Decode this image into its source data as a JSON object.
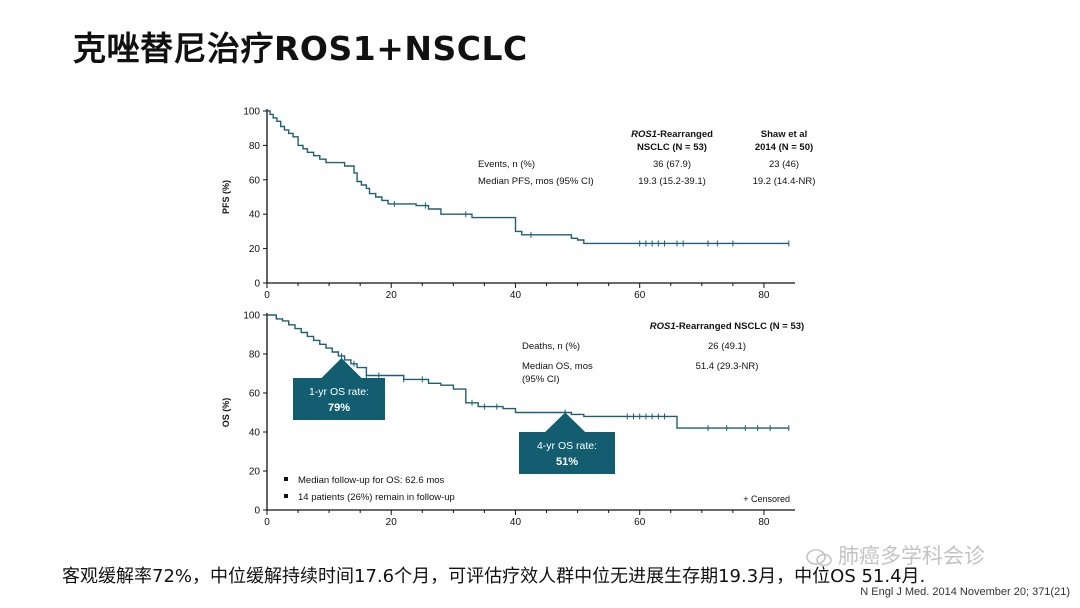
{
  "slide_title": "克唑替尼治疗ROS1+NSCLC",
  "summary": "客观缓解率72%，中位缓解持续时间17.6个月，可评估疗效人群中位无进展生存期19.3月，中位OS 51.4月.",
  "citation": "N Engl J Med. 2014 November 20; 371(21)",
  "watermark": "肺癌多学科会诊",
  "colors": {
    "curve": "#1e5f74",
    "callout": "#125e70",
    "axis": "#111111",
    "text": "#111111"
  },
  "chart_data": [
    {
      "type": "line",
      "ylabel": "PFS (%)",
      "xlim": [
        0,
        85
      ],
      "ylim": [
        0,
        100
      ],
      "xticks": [
        "0",
        "20",
        "40",
        "60",
        "80"
      ],
      "yticks": [
        "0",
        "20",
        "40",
        "60",
        "80",
        "100"
      ],
      "table": {
        "col1_head_italic": "ROS1",
        "col1_head_rest": "-Rearranged",
        "col1_head_line2": "NSCLC (N = 53)",
        "col2_head_line1": "Shaw et al",
        "col2_head_line2": "2014 (N = 50)",
        "rows": [
          {
            "label": "Events, n (%)",
            "v1": "36 (67.9)",
            "v2": "23 (46)"
          },
          {
            "label": "Median PFS, mos (95% CI)",
            "v1": "19.3 (15.2-39.1)",
            "v2": "19.2 (14.4-NR)"
          }
        ]
      },
      "series": [
        {
          "x": [
            0,
            0.5,
            1,
            1.6,
            2.2,
            2.8,
            3.5,
            4.2,
            5,
            5.8,
            6.5,
            7.5,
            8.5,
            9.5,
            10.5,
            12.5,
            14,
            14.5,
            15.2,
            16,
            16.5,
            17.5,
            18.5,
            19.5,
            21,
            24,
            26,
            28,
            33,
            40,
            41,
            42,
            44,
            49,
            50,
            51,
            60,
            65,
            70,
            75,
            84
          ],
          "y": [
            100,
            98,
            96,
            94,
            91,
            89,
            87,
            85,
            80,
            78,
            76,
            74,
            72,
            70,
            70,
            68,
            64,
            59,
            57,
            55,
            52,
            50,
            48,
            46,
            46,
            45,
            43,
            40,
            38,
            30,
            28,
            28,
            28,
            26,
            25,
            23,
            23,
            23,
            23,
            23,
            23
          ]
        }
      ],
      "censored_x": [
        20.5,
        25.5,
        32,
        42.5,
        60,
        61,
        62,
        63,
        64,
        66,
        67,
        71,
        72.5,
        75,
        84
      ]
    },
    {
      "type": "line",
      "ylabel": "OS (%)",
      "xlim": [
        0,
        85
      ],
      "ylim": [
        0,
        100
      ],
      "xticks": [
        "0",
        "20",
        "40",
        "60",
        "80"
      ],
      "yticks": [
        "0",
        "20",
        "40",
        "60",
        "80",
        "100"
      ],
      "table": {
        "col1_head_italic": "ROS1",
        "col1_head_rest": "-Rearranged NSCLC (N = 53)",
        "rows": [
          {
            "label": "Deaths, n (%)",
            "v1": "26 (49.1)"
          },
          {
            "label": "Median OS, mos",
            "label2": "(95% CI)",
            "v1": "51.4 (29.3-NR)"
          }
        ]
      },
      "series": [
        {
          "x": [
            0,
            1.5,
            2.5,
            3.5,
            4.5,
            5.5,
            6.5,
            7.5,
            8.5,
            9.5,
            10.5,
            11.5,
            12.5,
            13.5,
            14.5,
            16,
            22,
            24,
            26,
            28,
            30,
            32,
            34,
            38,
            40,
            44,
            49,
            51,
            55,
            60,
            66,
            70,
            84
          ],
          "y": [
            100,
            98,
            97,
            95,
            93,
            91,
            89,
            87,
            85,
            83,
            81,
            79,
            77,
            75,
            73,
            69,
            67,
            67,
            65,
            64,
            62,
            55,
            53,
            52,
            50,
            50,
            49,
            48,
            48,
            48,
            42,
            42,
            42
          ]
        }
      ],
      "censored_x": [
        12,
        14,
        16,
        18,
        22,
        25,
        33,
        35,
        37,
        48,
        58,
        59,
        60,
        61,
        62,
        63,
        64,
        71,
        74,
        77,
        79,
        81,
        84
      ],
      "callouts": [
        {
          "line1": "1-yr OS rate:",
          "line2": "79%",
          "x": 12,
          "y": 79
        },
        {
          "line1": "4-yr OS rate:",
          "line2": "51%",
          "x": 48,
          "y": 51
        }
      ],
      "notes": [
        "Median follow-up for OS: 62.6 mos",
        "14 patients (26%) remain in follow-up"
      ],
      "censored_legend": "+ Censored"
    }
  ]
}
